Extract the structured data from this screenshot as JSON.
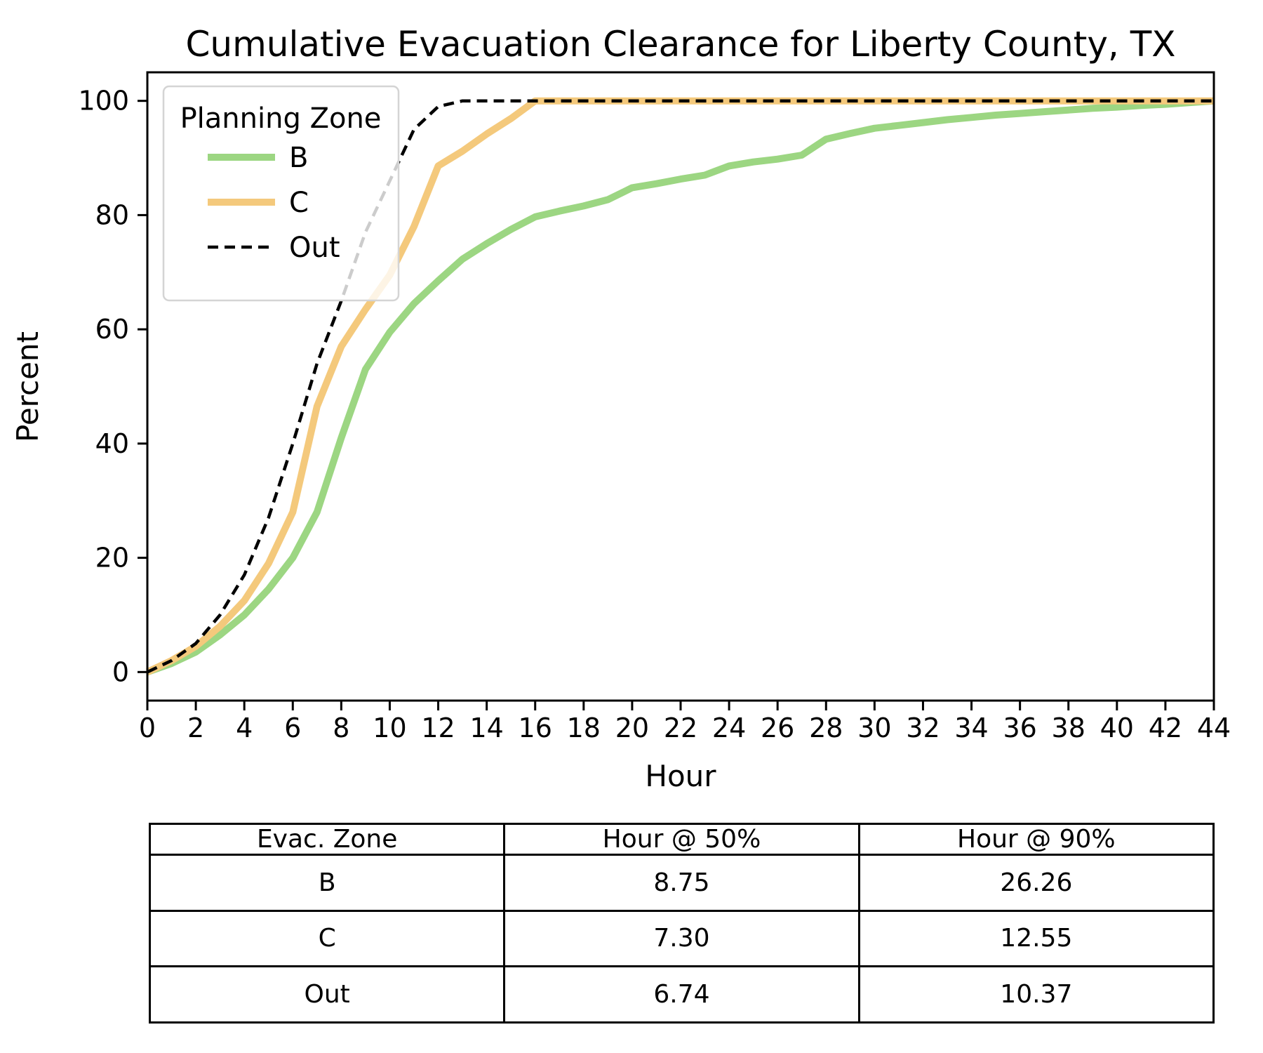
{
  "title": "Cumulative Evacuation Clearance for Liberty County, TX",
  "chart_data": {
    "type": "line",
    "title": "Cumulative Evacuation Clearance for Liberty County, TX",
    "xlabel": "Hour",
    "ylabel": "Percent",
    "xlim": [
      0,
      44
    ],
    "ylim": [
      -5,
      105
    ],
    "x_ticks": [
      0,
      2,
      4,
      6,
      8,
      10,
      12,
      14,
      16,
      18,
      20,
      22,
      24,
      26,
      28,
      30,
      32,
      34,
      36,
      38,
      40,
      42,
      44
    ],
    "y_ticks": [
      0,
      20,
      40,
      60,
      80,
      100
    ],
    "grid": false,
    "legend": {
      "title": "Planning Zone",
      "position": "upper left",
      "entries": [
        "B",
        "C",
        "Out"
      ]
    },
    "series": [
      {
        "name": "B",
        "color": "#9cd682",
        "style": "solid",
        "hour_at_50pct": 8.75,
        "hour_at_90pct": 26.26,
        "points": [
          [
            0,
            0
          ],
          [
            1,
            1.5
          ],
          [
            2,
            3.5
          ],
          [
            3,
            6.5
          ],
          [
            4,
            10
          ],
          [
            5,
            14.5
          ],
          [
            6,
            20
          ],
          [
            7,
            28
          ],
          [
            8,
            41
          ],
          [
            9,
            53
          ],
          [
            10,
            59.5
          ],
          [
            11,
            64.5
          ],
          [
            12,
            68.5
          ],
          [
            13,
            72.3
          ],
          [
            14,
            75
          ],
          [
            15,
            77.5
          ],
          [
            16,
            79.7
          ],
          [
            17,
            80.7
          ],
          [
            18,
            81.6
          ],
          [
            19,
            82.7
          ],
          [
            20,
            84.8
          ],
          [
            21,
            85.5
          ],
          [
            22,
            86.3
          ],
          [
            23,
            87
          ],
          [
            24,
            88.6
          ],
          [
            25,
            89.3
          ],
          [
            26,
            89.8
          ],
          [
            27,
            90.5
          ],
          [
            28,
            93.3
          ],
          [
            29,
            94.3
          ],
          [
            30,
            95.2
          ],
          [
            31,
            95.7
          ],
          [
            32,
            96.2
          ],
          [
            33,
            96.7
          ],
          [
            34,
            97.1
          ],
          [
            35,
            97.5
          ],
          [
            36,
            97.8
          ],
          [
            37,
            98.1
          ],
          [
            38,
            98.4
          ],
          [
            39,
            98.7
          ],
          [
            40,
            98.9
          ],
          [
            41,
            99.2
          ],
          [
            42,
            99.4
          ],
          [
            43,
            99.7
          ],
          [
            44,
            100
          ]
        ]
      },
      {
        "name": "C",
        "color": "#f4c97c",
        "style": "solid",
        "hour_at_50pct": 7.3,
        "hour_at_90pct": 12.55,
        "points": [
          [
            0,
            0
          ],
          [
            1,
            2
          ],
          [
            2,
            4.5
          ],
          [
            3,
            8
          ],
          [
            4,
            12.5
          ],
          [
            5,
            19
          ],
          [
            6,
            28
          ],
          [
            7,
            46.5
          ],
          [
            8,
            57
          ],
          [
            9,
            63.5
          ],
          [
            10,
            69.5
          ],
          [
            11,
            78
          ],
          [
            12,
            88.6
          ],
          [
            13,
            91.2
          ],
          [
            14,
            94.2
          ],
          [
            15,
            96.9
          ],
          [
            16,
            100
          ],
          [
            20,
            100
          ],
          [
            24,
            100
          ],
          [
            28,
            100
          ],
          [
            32,
            100
          ],
          [
            36,
            100
          ],
          [
            40,
            100
          ],
          [
            44,
            100
          ]
        ]
      },
      {
        "name": "Out",
        "color": "#000000",
        "style": "dashed",
        "hour_at_50pct": 6.74,
        "hour_at_90pct": 10.37,
        "points": [
          [
            0,
            0
          ],
          [
            1,
            2
          ],
          [
            2,
            5
          ],
          [
            3,
            10
          ],
          [
            4,
            17
          ],
          [
            5,
            27
          ],
          [
            6,
            40
          ],
          [
            7,
            54
          ],
          [
            8,
            65
          ],
          [
            9,
            77
          ],
          [
            10,
            86
          ],
          [
            11,
            95
          ],
          [
            12,
            99
          ],
          [
            13,
            100
          ],
          [
            16,
            100
          ],
          [
            20,
            100
          ],
          [
            24,
            100
          ],
          [
            28,
            100
          ],
          [
            32,
            100
          ],
          [
            36,
            100
          ],
          [
            40,
            100
          ],
          [
            44,
            100
          ]
        ]
      }
    ]
  },
  "table": {
    "headers": [
      "Evac. Zone",
      "Hour @ 50%",
      "Hour @ 90%"
    ],
    "rows": [
      [
        "B",
        "8.75",
        "26.26"
      ],
      [
        "C",
        "7.30",
        "12.55"
      ],
      [
        "Out",
        "6.74",
        "10.37"
      ]
    ]
  },
  "colors": {
    "zone_b": "#9cd682",
    "zone_c": "#f4c97c",
    "zone_out": "#000000",
    "spine": "#000000",
    "legend_border": "#d4d4d4",
    "legend_bg": "#ffffff"
  }
}
